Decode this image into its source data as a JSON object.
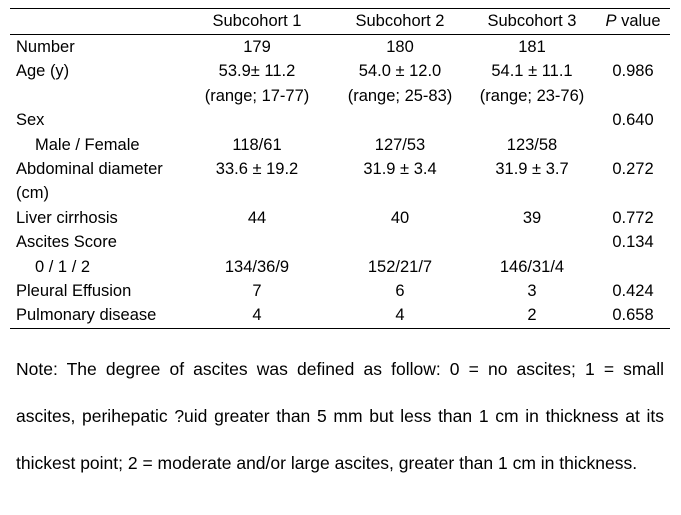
{
  "table": {
    "headers": {
      "label": "",
      "s1": "Subcohort 1",
      "s2": "Subcohort 2",
      "s3": "Subcohort 3",
      "p_italic": "P",
      "p_rest": " value"
    },
    "rows": [
      {
        "label": "Number",
        "s1": "179",
        "s2": "180",
        "s3": "181",
        "p": ""
      },
      {
        "label": "Age (y)",
        "s1": "53.9± 11.2",
        "s2": "54.0 ± 12.0",
        "s3": "54.1 ± 11.1",
        "p": "0.986"
      },
      {
        "label": "",
        "s1": "(range; 17-77)",
        "s2": "(range; 25-83)",
        "s3": "(range; 23-76)",
        "p": ""
      },
      {
        "label": "Sex",
        "s1": "",
        "s2": "",
        "s3": "",
        "p": "0.640"
      },
      {
        "label": "Male / Female",
        "s1": "118/61",
        "s2": "127/53",
        "s3": "123/58",
        "p": ""
      },
      {
        "label": "Abdominal diameter",
        "s1": "33.6 ± 19.2",
        "s2": "31.9 ± 3.4",
        "s3": "31.9 ± 3.7",
        "p": "0.272"
      },
      {
        "label": "(cm)",
        "s1": "",
        "s2": "",
        "s3": "",
        "p": ""
      },
      {
        "label": "Liver cirrhosis",
        "s1": "44",
        "s2": "40",
        "s3": "39",
        "p": "0.772"
      },
      {
        "label": "Ascites Score",
        "s1": "",
        "s2": "",
        "s3": "",
        "p": "0.134"
      },
      {
        "label": "0 / 1 / 2",
        "s1": "134/36/9",
        "s2": "152/21/7",
        "s3": "146/31/4",
        "p": ""
      },
      {
        "label": "Pleural Effusion",
        "s1": "7",
        "s2": "6",
        "s3": "3",
        "p": "0.424"
      },
      {
        "label": "Pulmonary disease",
        "s1": "4",
        "s2": "4",
        "s3": "2",
        "p": "0.658"
      }
    ]
  },
  "note": "Note: The degree of ascites was defined as follow: 0 = no ascites; 1 = small ascites, perihepatic ?uid greater than 5 mm but less than 1 cm in thickness at its thickest point; 2 = moderate and/or large ascites, greater than 1 cm in thickness."
}
